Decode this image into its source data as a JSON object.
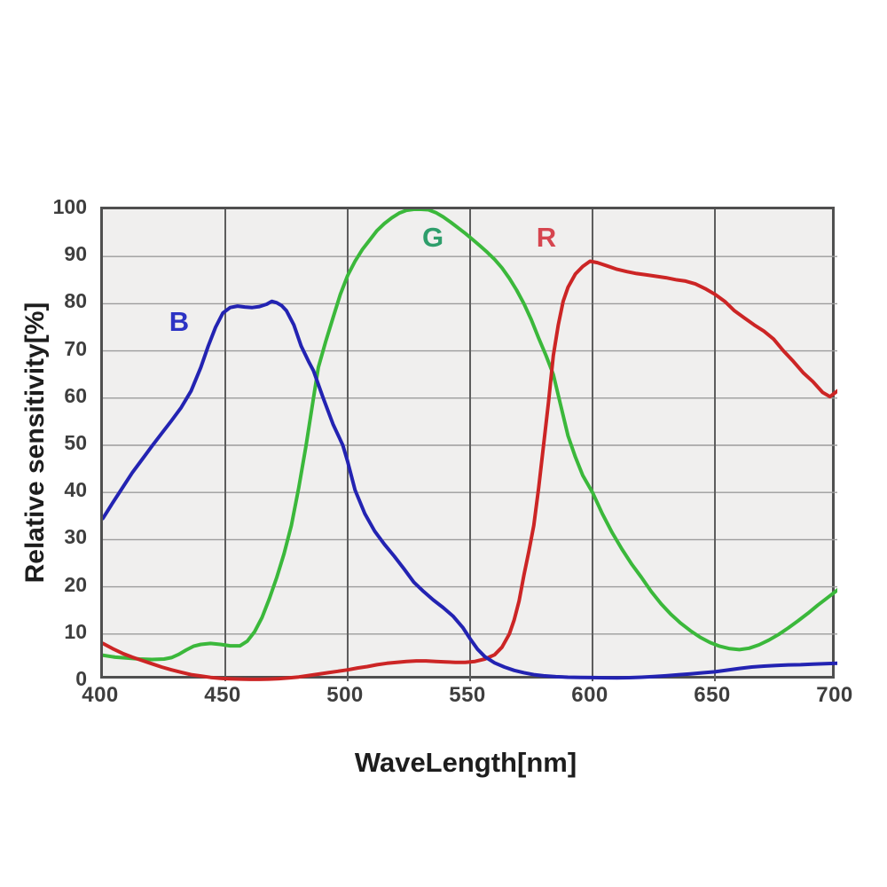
{
  "chart_data": {
    "type": "line",
    "title": "",
    "xlabel": "WaveLength[nm]",
    "ylabel": "Relative sensitivity[%]",
    "xlim": [
      400,
      700
    ],
    "ylim": [
      0,
      100
    ],
    "x_ticks": [
      400,
      450,
      500,
      550,
      600,
      650,
      700
    ],
    "y_ticks": [
      0,
      10,
      20,
      30,
      40,
      50,
      60,
      70,
      80,
      90,
      100
    ],
    "grid": true,
    "legend_position": "labels-on-curves",
    "colors": {
      "plot_background": "#f0efee",
      "page_background": "#ffffff",
      "grid_horizontal": "#9c9c9c",
      "grid_vertical": "#5d5d5d",
      "plot_border": "#4f4f4f",
      "tick_text": "#3e3e3e",
      "axis_title_text": "#1d1d1d"
    },
    "series": [
      {
        "name": "G",
        "label": "G",
        "color": "#3bb83b",
        "label_color": "#2e9e6b",
        "points": [
          [
            400,
            5.5
          ],
          [
            405,
            5.1
          ],
          [
            410,
            4.9
          ],
          [
            415,
            4.7
          ],
          [
            420,
            4.6
          ],
          [
            425,
            4.7
          ],
          [
            428,
            5.0
          ],
          [
            431,
            5.7
          ],
          [
            434,
            6.6
          ],
          [
            437,
            7.4
          ],
          [
            440,
            7.8
          ],
          [
            444,
            8.0
          ],
          [
            448,
            7.8
          ],
          [
            452,
            7.5
          ],
          [
            456,
            7.5
          ],
          [
            459,
            8.5
          ],
          [
            462,
            10.5
          ],
          [
            465,
            13.5
          ],
          [
            468,
            17.5
          ],
          [
            471,
            22.0
          ],
          [
            474,
            27.0
          ],
          [
            477,
            33.0
          ],
          [
            480,
            41.0
          ],
          [
            483,
            50.0
          ],
          [
            486,
            60.0
          ],
          [
            488,
            66.5
          ],
          [
            491,
            72.0
          ],
          [
            494,
            77.0
          ],
          [
            497,
            82.0
          ],
          [
            500,
            86.0
          ],
          [
            503,
            89.0
          ],
          [
            506,
            91.5
          ],
          [
            509,
            93.5
          ],
          [
            512,
            95.5
          ],
          [
            515,
            97.0
          ],
          [
            518,
            98.2
          ],
          [
            521,
            99.2
          ],
          [
            524,
            99.8
          ],
          [
            527,
            100.0
          ],
          [
            530,
            100.0
          ],
          [
            533,
            99.9
          ],
          [
            536,
            99.3
          ],
          [
            539,
            98.4
          ],
          [
            542,
            97.3
          ],
          [
            545,
            96.1
          ],
          [
            548,
            94.9
          ],
          [
            551,
            93.6
          ],
          [
            554,
            92.3
          ],
          [
            557,
            90.9
          ],
          [
            560,
            89.4
          ],
          [
            563,
            87.6
          ],
          [
            566,
            85.4
          ],
          [
            569,
            82.9
          ],
          [
            572,
            80.0
          ],
          [
            575,
            76.6
          ],
          [
            578,
            72.7
          ],
          [
            581,
            69.0
          ],
          [
            584,
            65.0
          ],
          [
            587,
            58.5
          ],
          [
            590,
            52.0
          ],
          [
            593,
            47.5
          ],
          [
            596,
            43.6
          ],
          [
            600,
            40.0
          ],
          [
            604,
            35.5
          ],
          [
            608,
            31.5
          ],
          [
            612,
            28.0
          ],
          [
            616,
            24.8
          ],
          [
            620,
            22.0
          ],
          [
            624,
            19.0
          ],
          [
            628,
            16.4
          ],
          [
            632,
            14.2
          ],
          [
            636,
            12.3
          ],
          [
            640,
            10.7
          ],
          [
            644,
            9.3
          ],
          [
            648,
            8.2
          ],
          [
            652,
            7.4
          ],
          [
            656,
            6.9
          ],
          [
            660,
            6.7
          ],
          [
            664,
            7.0
          ],
          [
            668,
            7.7
          ],
          [
            672,
            8.7
          ],
          [
            676,
            9.9
          ],
          [
            680,
            11.3
          ],
          [
            684,
            12.8
          ],
          [
            688,
            14.4
          ],
          [
            692,
            16.1
          ],
          [
            696,
            17.7
          ],
          [
            700,
            19.3
          ]
        ]
      },
      {
        "name": "R",
        "label": "R",
        "color": "#cc2525",
        "label_color": "#d6454f",
        "points": [
          [
            400,
            8.0
          ],
          [
            404,
            6.9
          ],
          [
            408,
            5.9
          ],
          [
            412,
            5.1
          ],
          [
            416,
            4.4
          ],
          [
            420,
            3.7
          ],
          [
            424,
            3.0
          ],
          [
            428,
            2.4
          ],
          [
            432,
            1.9
          ],
          [
            436,
            1.4
          ],
          [
            440,
            1.1
          ],
          [
            444,
            0.8
          ],
          [
            448,
            0.6
          ],
          [
            452,
            0.5
          ],
          [
            456,
            0.45
          ],
          [
            460,
            0.4
          ],
          [
            464,
            0.4
          ],
          [
            468,
            0.45
          ],
          [
            472,
            0.55
          ],
          [
            476,
            0.7
          ],
          [
            480,
            0.9
          ],
          [
            484,
            1.2
          ],
          [
            488,
            1.5
          ],
          [
            492,
            1.8
          ],
          [
            496,
            2.1
          ],
          [
            500,
            2.4
          ],
          [
            504,
            2.8
          ],
          [
            508,
            3.1
          ],
          [
            512,
            3.5
          ],
          [
            516,
            3.8
          ],
          [
            520,
            4.0
          ],
          [
            524,
            4.2
          ],
          [
            528,
            4.3
          ],
          [
            532,
            4.3
          ],
          [
            536,
            4.2
          ],
          [
            540,
            4.1
          ],
          [
            544,
            4.0
          ],
          [
            548,
            4.0
          ],
          [
            552,
            4.2
          ],
          [
            556,
            4.7
          ],
          [
            560,
            5.6
          ],
          [
            563,
            7.2
          ],
          [
            566,
            10.0
          ],
          [
            568,
            13.0
          ],
          [
            570,
            17.0
          ],
          [
            572,
            22.5
          ],
          [
            574,
            27.5
          ],
          [
            576,
            33.0
          ],
          [
            578,
            41.0
          ],
          [
            580,
            50.0
          ],
          [
            582,
            59.0
          ],
          [
            584,
            69.0
          ],
          [
            586,
            75.5
          ],
          [
            588,
            80.5
          ],
          [
            590,
            83.5
          ],
          [
            593,
            86.3
          ],
          [
            596,
            87.9
          ],
          [
            599,
            89.0
          ],
          [
            602,
            88.7
          ],
          [
            606,
            88.0
          ],
          [
            610,
            87.3
          ],
          [
            614,
            86.8
          ],
          [
            618,
            86.4
          ],
          [
            622,
            86.1
          ],
          [
            626,
            85.8
          ],
          [
            630,
            85.5
          ],
          [
            634,
            85.1
          ],
          [
            638,
            84.8
          ],
          [
            642,
            84.2
          ],
          [
            646,
            83.2
          ],
          [
            650,
            82.0
          ],
          [
            654,
            80.5
          ],
          [
            658,
            78.5
          ],
          [
            662,
            77.0
          ],
          [
            666,
            75.5
          ],
          [
            670,
            74.2
          ],
          [
            674,
            72.5
          ],
          [
            678,
            70.0
          ],
          [
            682,
            67.8
          ],
          [
            686,
            65.4
          ],
          [
            690,
            63.5
          ],
          [
            694,
            61.2
          ],
          [
            697,
            60.3
          ],
          [
            700,
            61.5
          ]
        ]
      },
      {
        "name": "B",
        "label": "B",
        "color": "#2323b2",
        "label_color": "#2c33c4",
        "points": [
          [
            400,
            34.5
          ],
          [
            404,
            37.8
          ],
          [
            408,
            41.0
          ],
          [
            412,
            44.2
          ],
          [
            416,
            47.0
          ],
          [
            420,
            49.8
          ],
          [
            424,
            52.5
          ],
          [
            428,
            55.2
          ],
          [
            432,
            58.0
          ],
          [
            436,
            61.5
          ],
          [
            440,
            66.5
          ],
          [
            443,
            71.0
          ],
          [
            446,
            75.0
          ],
          [
            449,
            78.0
          ],
          [
            452,
            79.2
          ],
          [
            455,
            79.5
          ],
          [
            458,
            79.3
          ],
          [
            461,
            79.2
          ],
          [
            464,
            79.4
          ],
          [
            467,
            79.9
          ],
          [
            469,
            80.5
          ],
          [
            471,
            80.2
          ],
          [
            473,
            79.6
          ],
          [
            475,
            78.5
          ],
          [
            478,
            75.5
          ],
          [
            481,
            71.0
          ],
          [
            484,
            67.8
          ],
          [
            486,
            65.8
          ],
          [
            490,
            60.0
          ],
          [
            494,
            54.5
          ],
          [
            498,
            50.0
          ],
          [
            500,
            46.5
          ],
          [
            503,
            40.5
          ],
          [
            507,
            35.5
          ],
          [
            511,
            31.8
          ],
          [
            515,
            29.0
          ],
          [
            519,
            26.5
          ],
          [
            523,
            23.8
          ],
          [
            527,
            21.0
          ],
          [
            531,
            19.0
          ],
          [
            535,
            17.2
          ],
          [
            539,
            15.6
          ],
          [
            543,
            13.8
          ],
          [
            547,
            11.4
          ],
          [
            550,
            9.0
          ],
          [
            553,
            6.8
          ],
          [
            556,
            5.2
          ],
          [
            560,
            3.9
          ],
          [
            564,
            3.0
          ],
          [
            568,
            2.3
          ],
          [
            572,
            1.8
          ],
          [
            576,
            1.4
          ],
          [
            580,
            1.15
          ],
          [
            585,
            0.95
          ],
          [
            590,
            0.85
          ],
          [
            595,
            0.8
          ],
          [
            600,
            0.78
          ],
          [
            605,
            0.74
          ],
          [
            610,
            0.72
          ],
          [
            615,
            0.76
          ],
          [
            620,
            0.85
          ],
          [
            625,
            1.0
          ],
          [
            630,
            1.15
          ],
          [
            635,
            1.35
          ],
          [
            640,
            1.55
          ],
          [
            645,
            1.78
          ],
          [
            650,
            2.0
          ],
          [
            655,
            2.35
          ],
          [
            660,
            2.7
          ],
          [
            665,
            3.0
          ],
          [
            670,
            3.2
          ],
          [
            675,
            3.35
          ],
          [
            680,
            3.45
          ],
          [
            685,
            3.5
          ],
          [
            690,
            3.6
          ],
          [
            695,
            3.7
          ],
          [
            700,
            3.8
          ]
        ]
      }
    ]
  }
}
